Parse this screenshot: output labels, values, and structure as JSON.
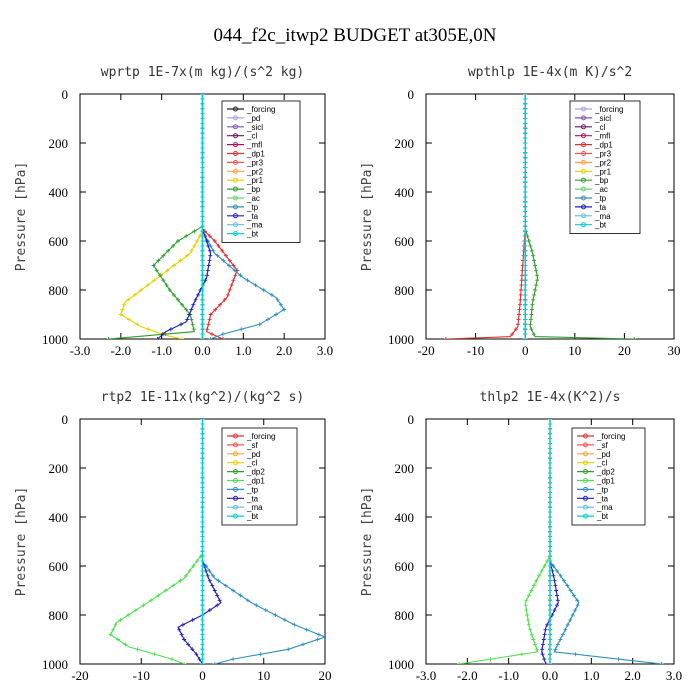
{
  "figure_title": "044_f2c_itwp2  BUDGET at305E,0N",
  "chart_data": [
    {
      "type": "line",
      "title": "wprtp  1E-7x(m kg)/(s^2 kg)",
      "ylabel": "Pressure [hPa]",
      "xlim": [
        -3,
        3
      ],
      "ylim": [
        1000,
        0
      ],
      "xticks": [
        "-3.0",
        "-2.0",
        "-1.0",
        "0.0",
        "1.0",
        "2.0",
        "3.0"
      ],
      "yticks": [
        "0",
        "200",
        "400",
        "600",
        "800",
        "1000"
      ],
      "legend_position": "top-right",
      "series": [
        {
          "name": "_forcing",
          "color": "#222222",
          "x": [
            0,
            0,
            0
          ],
          "y": [
            0,
            500,
            1000
          ]
        },
        {
          "name": "_pd",
          "color": "#b0a0e0",
          "x": [
            0,
            0
          ],
          "y": [
            0,
            1000
          ]
        },
        {
          "name": "_sicl",
          "color": "#7a5ab8",
          "x": [
            0,
            0
          ],
          "y": [
            0,
            1000
          ]
        },
        {
          "name": "_cl",
          "color": "#6a1a6a",
          "x": [
            0,
            0
          ],
          "y": [
            0,
            1000
          ]
        },
        {
          "name": "_mfl",
          "color": "#b01060",
          "x": [
            0,
            0
          ],
          "y": [
            0,
            1000
          ]
        },
        {
          "name": "_dp1",
          "color": "#e03030",
          "x": [
            0,
            0.3,
            0.85,
            0.6,
            0.2,
            0.1,
            0.5
          ],
          "y": [
            550,
            600,
            720,
            830,
            900,
            970,
            1000
          ]
        },
        {
          "name": "_pr3",
          "color": "#ff5050",
          "x": [
            0,
            0
          ],
          "y": [
            0,
            1000
          ]
        },
        {
          "name": "_pr2",
          "color": "#ffa040",
          "x": [
            0,
            0
          ],
          "y": [
            0,
            1000
          ]
        },
        {
          "name": "_pr1",
          "color": "#e8d000",
          "x": [
            0,
            -0.3,
            -1.1,
            -1.9,
            -2.0,
            -1.5,
            -0.9,
            -0.5
          ],
          "y": [
            560,
            650,
            750,
            850,
            900,
            950,
            985,
            1000
          ]
        },
        {
          "name": "_bp",
          "color": "#30a030",
          "x": [
            0,
            -0.6,
            -1.2,
            -0.8,
            -0.3,
            -0.2,
            -2.3
          ],
          "y": [
            540,
            600,
            700,
            800,
            900,
            970,
            1000
          ]
        },
        {
          "name": "_ac",
          "color": "#70d070",
          "x": [
            0,
            0
          ],
          "y": [
            0,
            1000
          ]
        },
        {
          "name": "_tp",
          "color": "#3090c0",
          "x": [
            0,
            0.3,
            1.0,
            1.8,
            2.0,
            1.4,
            0.5,
            0.2
          ],
          "y": [
            560,
            650,
            750,
            830,
            880,
            940,
            980,
            1000
          ]
        },
        {
          "name": "_ta",
          "color": "#2020c0",
          "x": [
            0,
            0.2,
            0.1,
            -0.2,
            -0.4,
            -0.9,
            -1.1
          ],
          "y": [
            550,
            650,
            750,
            850,
            930,
            970,
            1000
          ]
        },
        {
          "name": "_ma",
          "color": "#60c0e0",
          "x": [
            0,
            0
          ],
          "y": [
            0,
            1000
          ]
        },
        {
          "name": "_bt",
          "color": "#00d0d0",
          "x": [
            0,
            0
          ],
          "y": [
            0,
            1000
          ]
        }
      ]
    },
    {
      "type": "line",
      "title": "wpthlp  1E-4x(m K)/s^2",
      "ylabel": "Pressure [hPa]",
      "xlim": [
        -20,
        30
      ],
      "ylim": [
        1000,
        0
      ],
      "xticks": [
        "-20",
        "-10",
        "0",
        "10",
        "20",
        "30"
      ],
      "yticks": [
        "0",
        "200",
        "400",
        "600",
        "800",
        "1000"
      ],
      "legend_position": "top-right",
      "series": [
        {
          "name": "_forcing",
          "color": "#b0a0e0",
          "x": [
            0,
            0
          ],
          "y": [
            0,
            1000
          ]
        },
        {
          "name": "_sicl",
          "color": "#7a5ab8",
          "x": [
            0,
            0
          ],
          "y": [
            0,
            1000
          ]
        },
        {
          "name": "_cl",
          "color": "#6a1a6a",
          "x": [
            0,
            0
          ],
          "y": [
            0,
            1000
          ]
        },
        {
          "name": "_mfl",
          "color": "#b01060",
          "x": [
            0,
            0
          ],
          "y": [
            0,
            1000
          ]
        },
        {
          "name": "_dp1",
          "color": "#e03030",
          "x": [
            0,
            -0.5,
            -1.0,
            -1.5,
            -3,
            -16
          ],
          "y": [
            550,
            700,
            850,
            950,
            990,
            1000
          ]
        },
        {
          "name": "_pr3",
          "color": "#ff5050",
          "x": [
            0,
            0
          ],
          "y": [
            0,
            1000
          ]
        },
        {
          "name": "_pr2",
          "color": "#ffa040",
          "x": [
            0,
            0
          ],
          "y": [
            0,
            1000
          ]
        },
        {
          "name": "_pr1",
          "color": "#e8d000",
          "x": [
            0,
            0
          ],
          "y": [
            0,
            1000
          ]
        },
        {
          "name": "_bp",
          "color": "#30a030",
          "x": [
            0,
            1.5,
            2.5,
            1.5,
            1.0,
            2.0,
            22
          ],
          "y": [
            550,
            650,
            750,
            850,
            950,
            990,
            1000
          ]
        },
        {
          "name": "_ac",
          "color": "#70d070",
          "x": [
            0,
            0
          ],
          "y": [
            0,
            1000
          ]
        },
        {
          "name": "_tp",
          "color": "#3090c0",
          "x": [
            0,
            0
          ],
          "y": [
            0,
            1000
          ]
        },
        {
          "name": "_ta",
          "color": "#2020c0",
          "x": [
            0,
            0
          ],
          "y": [
            0,
            1000
          ]
        },
        {
          "name": "_ma",
          "color": "#60c0e0",
          "x": [
            0,
            0
          ],
          "y": [
            0,
            1000
          ]
        },
        {
          "name": "_bt",
          "color": "#00d0d0",
          "x": [
            0,
            0
          ],
          "y": [
            0,
            1000
          ]
        }
      ]
    },
    {
      "type": "line",
      "title": "rtp2  1E-11x(kg^2)/(kg^2 s)",
      "ylabel": "Pressure [hPa]",
      "xlim": [
        -20,
        20
      ],
      "ylim": [
        1000,
        0
      ],
      "xticks": [
        "-20",
        "-10",
        "0",
        "10",
        "20"
      ],
      "yticks": [
        "0",
        "200",
        "400",
        "600",
        "800",
        "1000"
      ],
      "legend_position": "top-right",
      "series": [
        {
          "name": "_forcing",
          "color": "#e03030",
          "x": [
            0,
            0
          ],
          "y": [
            0,
            1000
          ]
        },
        {
          "name": "_sf",
          "color": "#ff5050",
          "x": [
            0,
            0
          ],
          "y": [
            0,
            1000
          ]
        },
        {
          "name": "_pd",
          "color": "#ffa040",
          "x": [
            0,
            0
          ],
          "y": [
            0,
            1000
          ]
        },
        {
          "name": "_cl",
          "color": "#e8d000",
          "x": [
            0,
            0
          ],
          "y": [
            0,
            1000
          ]
        },
        {
          "name": "_dp2",
          "color": "#30a030",
          "x": [
            0,
            0
          ],
          "y": [
            0,
            1000
          ]
        },
        {
          "name": "_dp1",
          "color": "#50e050",
          "x": [
            0,
            -3,
            -9,
            -14,
            -15,
            -12,
            -5,
            -3
          ],
          "y": [
            550,
            650,
            750,
            830,
            880,
            930,
            980,
            1000
          ]
        },
        {
          "name": "_tp",
          "color": "#3090c0",
          "x": [
            0,
            2,
            8,
            15,
            20,
            14,
            5,
            2
          ],
          "y": [
            580,
            650,
            750,
            840,
            890,
            940,
            980,
            1000
          ]
        },
        {
          "name": "_ta",
          "color": "#2020c0",
          "x": [
            0,
            1,
            3,
            0,
            -4,
            -3,
            -1,
            0
          ],
          "y": [
            580,
            650,
            750,
            800,
            850,
            900,
            960,
            1000
          ]
        },
        {
          "name": "_ma",
          "color": "#60c0e0",
          "x": [
            0,
            0
          ],
          "y": [
            0,
            1000
          ]
        },
        {
          "name": "_bt",
          "color": "#00d0d0",
          "x": [
            0,
            0
          ],
          "y": [
            0,
            1000
          ]
        }
      ]
    },
    {
      "type": "line",
      "title": "thlp2  1E-4x(K^2)/s",
      "ylabel": "Pressure [hPa]",
      "xlim": [
        -3,
        3
      ],
      "ylim": [
        1000,
        0
      ],
      "xticks": [
        "-3.0",
        "-2.0",
        "-1.0",
        "0.0",
        "1.0",
        "2.0",
        "3.0"
      ],
      "yticks": [
        "0",
        "200",
        "400",
        "600",
        "800",
        "1000"
      ],
      "legend_position": "top-right",
      "series": [
        {
          "name": "_forcing",
          "color": "#e03030",
          "x": [
            0,
            0
          ],
          "y": [
            0,
            1000
          ]
        },
        {
          "name": "_sf",
          "color": "#ff5050",
          "x": [
            0,
            0
          ],
          "y": [
            0,
            1000
          ]
        },
        {
          "name": "_pd",
          "color": "#ffa040",
          "x": [
            0,
            0
          ],
          "y": [
            0,
            1000
          ]
        },
        {
          "name": "_cl",
          "color": "#e8d000",
          "x": [
            0,
            0
          ],
          "y": [
            0,
            1000
          ]
        },
        {
          "name": "_dp2",
          "color": "#30a030",
          "x": [
            0,
            0
          ],
          "y": [
            0,
            1000
          ]
        },
        {
          "name": "_dp1",
          "color": "#50e050",
          "x": [
            0,
            -0.3,
            -0.6,
            -0.5,
            -0.3,
            -2.2
          ],
          "y": [
            560,
            650,
            750,
            850,
            950,
            1000
          ]
        },
        {
          "name": "_tp",
          "color": "#3090c0",
          "x": [
            0,
            0.3,
            0.7,
            0.4,
            0.1,
            2.7
          ],
          "y": [
            580,
            650,
            750,
            850,
            950,
            1000
          ]
        },
        {
          "name": "_ta",
          "color": "#2020c0",
          "x": [
            0,
            0.1,
            0.2,
            -0.1,
            -0.2,
            -0.1
          ],
          "y": [
            580,
            650,
            750,
            850,
            950,
            1000
          ]
        },
        {
          "name": "_ma",
          "color": "#60c0e0",
          "x": [
            0,
            0
          ],
          "y": [
            0,
            1000
          ]
        },
        {
          "name": "_bt",
          "color": "#00d0d0",
          "x": [
            0,
            0
          ],
          "y": [
            0,
            1000
          ]
        }
      ]
    }
  ]
}
